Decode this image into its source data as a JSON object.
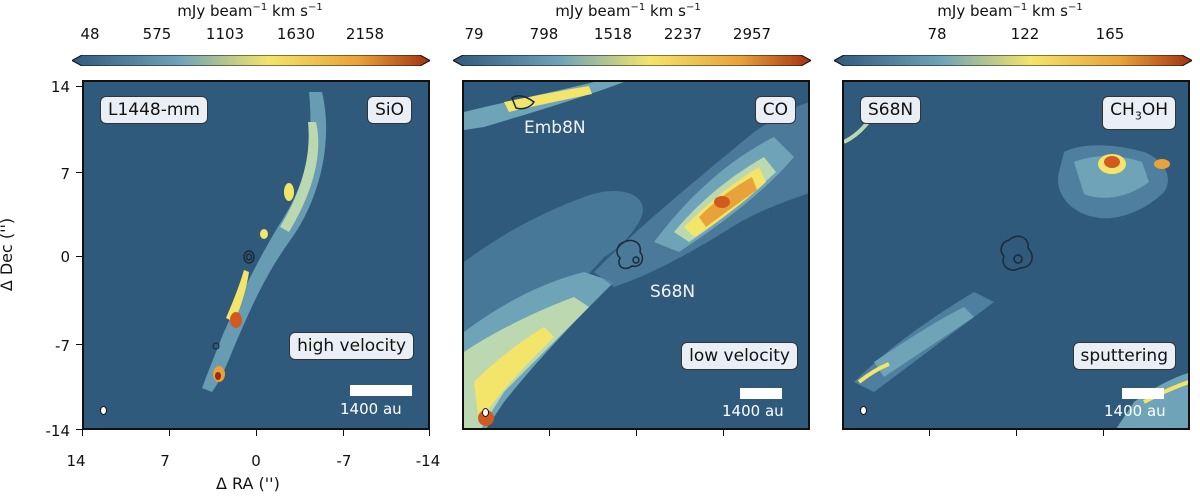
{
  "panels": [
    {
      "colorbar_title": "mJy beam",
      "colorbar_title_sup": "−1",
      "colorbar_title_rest": " km s",
      "colorbar_title_sup2": "−1",
      "colorbar_ticks": [
        "48",
        "575",
        "1103",
        "1630",
        "2158"
      ],
      "source_label": "L1448-mm",
      "line_label": "SiO",
      "regime_label": "high velocity",
      "scalebar_label": "1400 au"
    },
    {
      "colorbar_title": "mJy beam",
      "colorbar_title_sup": "−1",
      "colorbar_title_rest": " km s",
      "colorbar_title_sup2": "−1",
      "colorbar_ticks": [
        "79",
        "798",
        "1518",
        "2237",
        "2957"
      ],
      "line_label": "CO",
      "source_label_1": "Emb8N",
      "source_label_2": "S68N",
      "regime_label": "low velocity",
      "scalebar_label": "1400 au"
    },
    {
      "colorbar_title": "mJy beam",
      "colorbar_title_sup": "−1",
      "colorbar_title_rest": " km s",
      "colorbar_title_sup2": "−1",
      "colorbar_ticks": [
        "78",
        "122",
        "165"
      ],
      "source_label": "S68N",
      "line_label_main": "CH",
      "line_label_sub": "3",
      "line_label_rest": "OH",
      "regime_label": "sputtering",
      "scalebar_label": "1400 au"
    }
  ],
  "axes": {
    "y_label": "Δ Dec ('')",
    "x_label": "Δ RA ('')",
    "y_ticks": [
      "14",
      "7",
      "0",
      "-7",
      "-14"
    ],
    "x_ticks": [
      "14",
      "7",
      "0",
      "-7",
      "-14"
    ]
  },
  "colors": {
    "background": "#2f5a7c",
    "low": "#6fa3b8",
    "mid": "#f3e46a",
    "high": "#d25a1e",
    "peak": "#9a2a10"
  }
}
